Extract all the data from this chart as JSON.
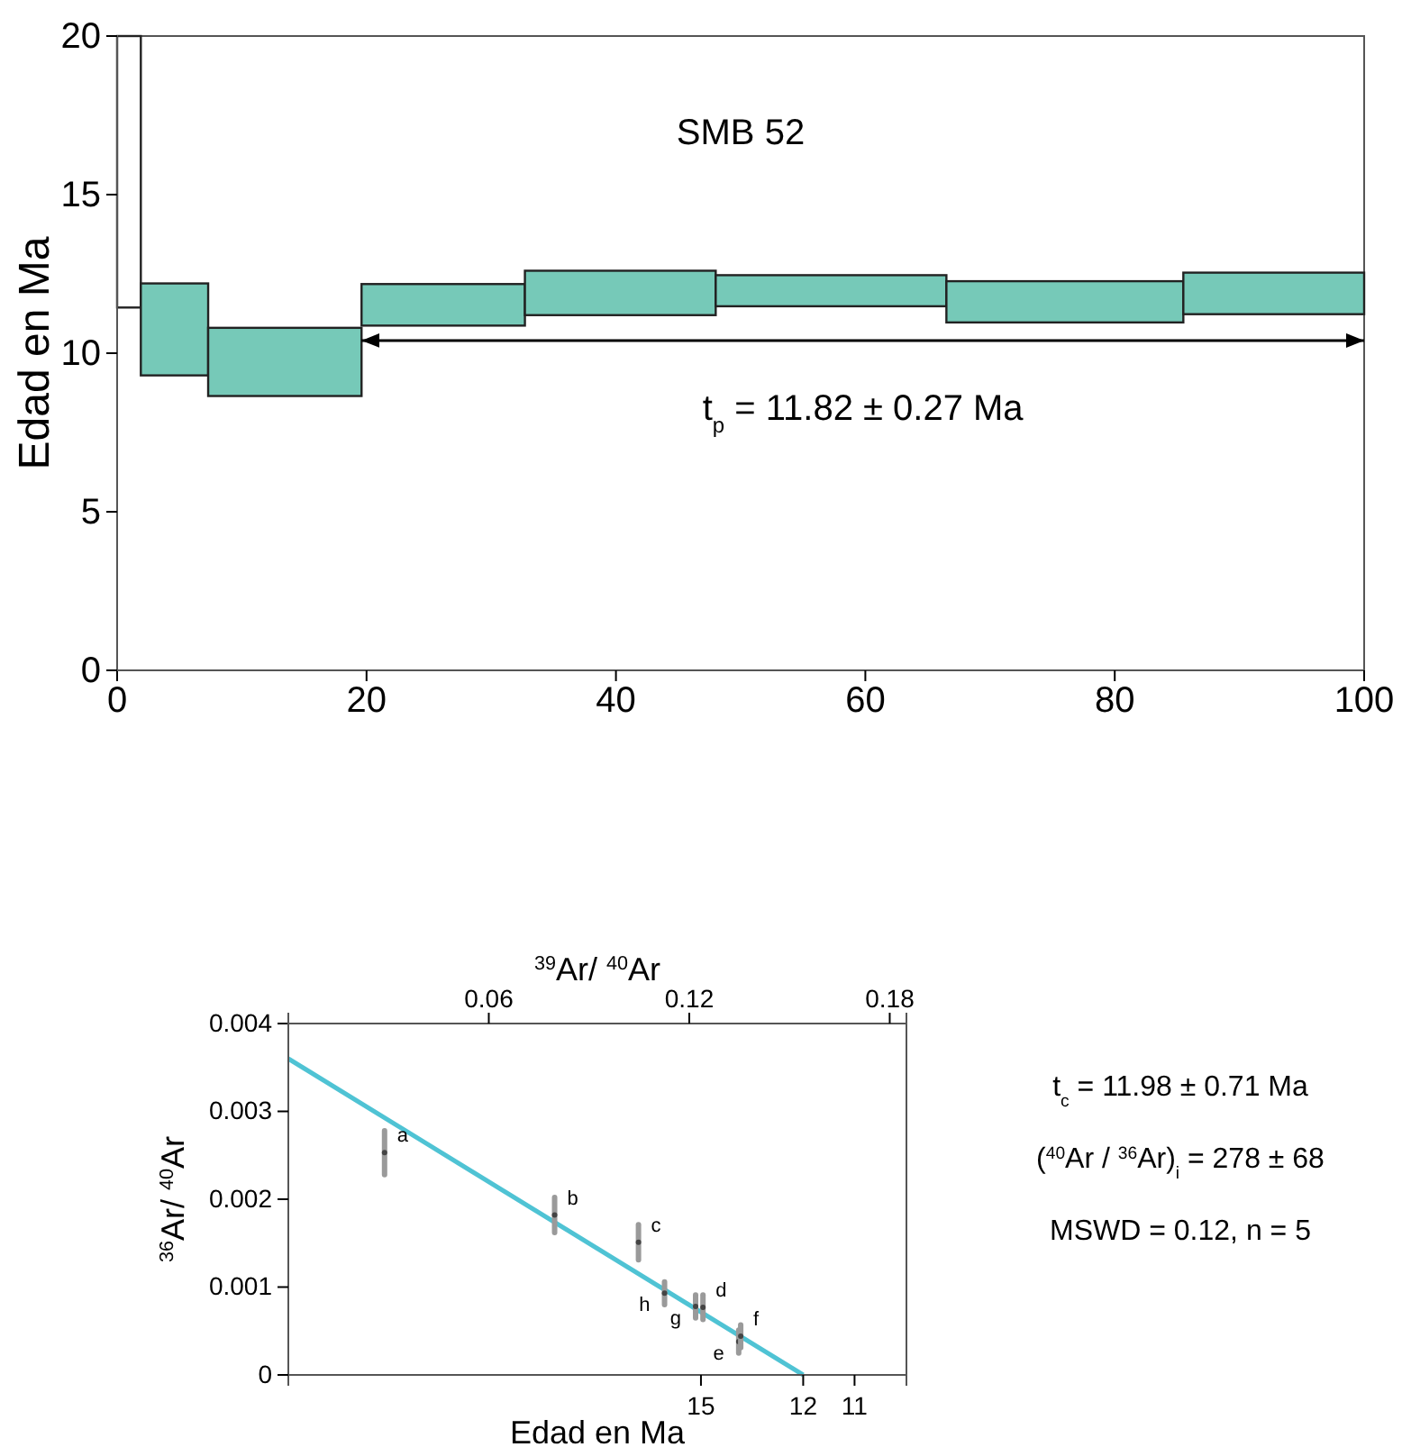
{
  "chart_data": [
    {
      "type": "histogram",
      "title": "SMB 52",
      "ylabel": "Edad en Ma",
      "series": [
        {
          "type": "histogram",
          "bins": [
            0,
            1.9,
            7.3,
            19.6,
            32.7,
            48.0,
            66.5,
            85.5,
            100
          ],
          "base": [
            11.44,
            9.3,
            8.65,
            10.87,
            11.2,
            11.48,
            10.97,
            11.23
          ],
          "values": [
            8.56,
            2.9,
            2.15,
            1.31,
            1.4,
            0.98,
            1.3,
            1.31
          ],
          "colors": [
            "#ffffff",
            "#76c9b8",
            "#76c9b8",
            "#76c9b8",
            "#76c9b8",
            "#76c9b8",
            "#76c9b8",
            "#76c9b8"
          ]
        },
        {
          "type": "line",
          "color": "#000000",
          "x": [
            19.6,
            100
          ],
          "values": [
            10.4,
            10.4
          ]
        }
      ],
      "xlim": [
        0,
        100
      ],
      "xticks": [
        0,
        20,
        40,
        60,
        80,
        100
      ],
      "ylim": [
        0,
        20
      ],
      "yticks": [
        0,
        5,
        10,
        15,
        20
      ],
      "annotations": [
        "t$_{p}$ = 11.82 ± 0.27 Ma"
      ],
      "grid": false
    },
    {
      "type": "scatter",
      "xlabel": "$^{39}$Ar/ $^{40}$Ar",
      "ylabel": "$^{36}$Ar/ $^{40}$Ar",
      "xlim": [
        0,
        0.185
      ],
      "xticks": [
        0.06,
        0.12,
        0.18
      ],
      "ylim": [
        0,
        0.004
      ],
      "yticks": [
        0,
        0.001,
        0.002,
        0.003,
        0.004
      ],
      "series": [
        {
          "type": "scatter",
          "color": "#444444",
          "x": [
            0.0288,
            0.0797,
            0.1048,
            0.1126,
            0.1219,
            0.1241,
            0.1348,
            0.1354
          ],
          "values": [
            0.00253,
            0.00182,
            0.00151,
            0.00093,
            0.00078,
            0.00077,
            0.00038,
            0.00044
          ],
          "errors": [
            0.00025,
            0.0002,
            0.0002,
            0.00013,
            0.00013,
            0.00014,
            0.00013,
            0.00013
          ],
          "value_labels": [
            "a",
            "b",
            "c",
            "h",
            "g",
            "d",
            "e",
            "f"
          ]
        },
        {
          "type": "line",
          "color": "#4fc3d4",
          "x": [
            0,
            0.1541
          ],
          "values": [
            0.0036,
            0
          ]
        }
      ],
      "annotations": [
        "Edad en Ma",
        {
          "text": "15",
          "x": 0.1235
        },
        {
          "text": "12",
          "x": 0.1541
        },
        "11",
        "t$_{c}$ = 11.98 ± 0.71 Ma",
        "($^{40}$Ar / $^{36}$Ar)$_{i}$ = 278 ± 68",
        "MSWD = 0.12, n = 5"
      ],
      "grid": false
    }
  ]
}
